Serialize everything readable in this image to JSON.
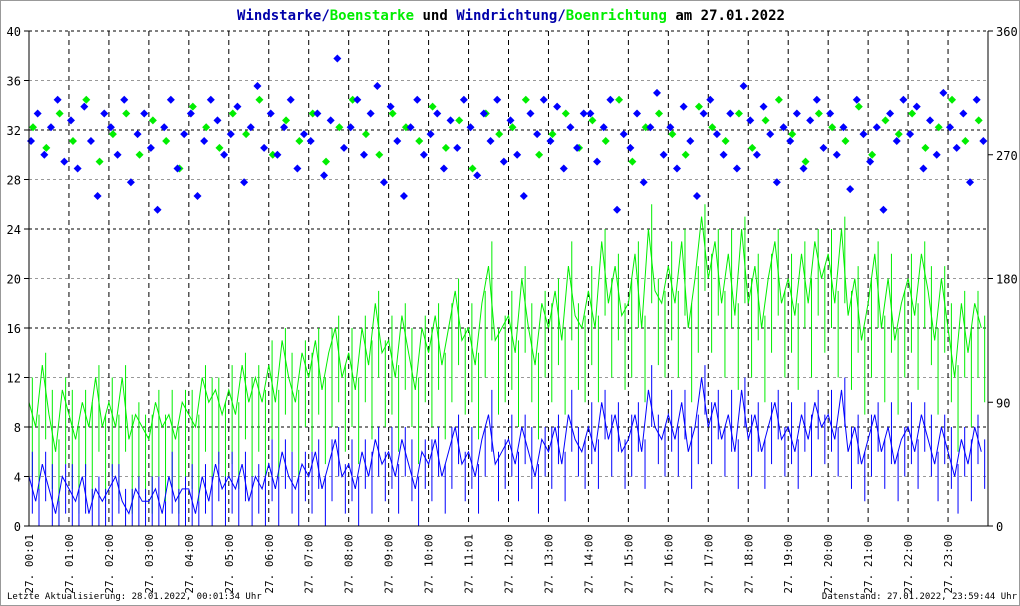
{
  "title": {
    "part1": "Windstarke/",
    "part2": "Boenstarke",
    "part3": " und ",
    "part4": "Windrichtung/",
    "part5": "Boenrichtung",
    "part6": " am 27.01.2022"
  },
  "footer": {
    "left": "Letzte Aktualisierung: 28.01.2022, 00:01:34 Uhr",
    "right": "Datenstand: 27.01.2022, 23:59:44 Uhr"
  },
  "colors": {
    "speed": "#0000ff",
    "gust": "#00ee00",
    "title_blue": "#0000aa",
    "grid": "#000000"
  },
  "chart_data": {
    "type": "line",
    "title": "Windstarke/Boenstarke und Windrichtung/Boenrichtung am 27.01.2022",
    "x_unit": "hours",
    "xlim": [
      0,
      24
    ],
    "x_tick_labels": [
      "27. 00:01",
      "27. 01:00",
      "27. 02:00",
      "27. 03:00",
      "27. 04:00",
      "27. 05:00",
      "27. 06:00",
      "27. 07:00",
      "27. 08:00",
      "27. 09:00",
      "27. 10:00",
      "27. 11:01",
      "27. 12:00",
      "27. 13:00",
      "27. 14:00",
      "27. 15:00",
      "27. 16:00",
      "27. 17:00",
      "27. 18:00",
      "27. 19:00",
      "27. 20:00",
      "27. 21:00",
      "27. 22:00",
      "27. 23:00"
    ],
    "ylim_left": [
      0,
      40
    ],
    "y_ticks_left": [
      "0",
      "4",
      "8",
      "12",
      "16",
      "20",
      "24",
      "28",
      "32",
      "36",
      "40"
    ],
    "ylim_right": [
      0,
      360
    ],
    "y_ticks_right": [
      "0",
      "90",
      "180",
      "270",
      "360"
    ],
    "grid": true,
    "series": [
      {
        "name": "Windstarke",
        "axis": "left",
        "style": "line",
        "step_minutes": 10,
        "values": [
          4,
          2,
          5,
          3,
          1,
          4,
          3,
          2,
          4,
          1,
          3,
          2,
          3,
          4,
          2,
          1,
          3,
          2,
          2,
          3,
          1,
          4,
          2,
          3,
          3,
          1,
          4,
          2,
          5,
          3,
          4,
          3,
          5,
          2,
          4,
          3,
          5,
          3,
          6,
          4,
          3,
          5,
          4,
          6,
          3,
          5,
          7,
          4,
          5,
          3,
          6,
          4,
          7,
          5,
          6,
          4,
          7,
          5,
          3,
          6,
          5,
          7,
          4,
          6,
          8,
          5,
          6,
          4,
          7,
          9,
          5,
          6,
          7,
          5,
          8,
          6,
          4,
          7,
          6,
          8,
          5,
          9,
          7,
          6,
          8,
          6,
          10,
          7,
          9,
          6,
          7,
          9,
          6,
          11,
          8,
          7,
          9,
          7,
          10,
          6,
          8,
          12,
          8,
          10,
          7,
          9,
          6,
          11,
          7,
          9,
          6,
          8,
          10,
          7,
          8,
          6,
          9,
          7,
          10,
          8,
          9,
          7,
          11,
          6,
          8,
          5,
          7,
          9,
          6,
          8,
          5,
          7,
          8,
          6,
          9,
          7,
          5,
          8,
          6,
          4,
          7,
          5,
          8,
          6
        ]
      },
      {
        "name": "Boenstarke",
        "axis": "left",
        "style": "line",
        "step_minutes": 10,
        "values": [
          10,
          8,
          13,
          9,
          6,
          11,
          9,
          7,
          10,
          8,
          12,
          8,
          10,
          8,
          12,
          7,
          9,
          8,
          7,
          10,
          8,
          9,
          7,
          10,
          9,
          8,
          12,
          10,
          11,
          9,
          11,
          9,
          13,
          10,
          12,
          10,
          13,
          10,
          15,
          12,
          10,
          14,
          12,
          15,
          11,
          14,
          16,
          12,
          14,
          11,
          16,
          13,
          18,
          14,
          15,
          12,
          17,
          14,
          11,
          16,
          14,
          17,
          13,
          16,
          19,
          15,
          16,
          13,
          18,
          21,
          15,
          16,
          17,
          14,
          20,
          16,
          13,
          18,
          16,
          19,
          15,
          21,
          17,
          16,
          19,
          16,
          23,
          18,
          21,
          17,
          18,
          22,
          16,
          24,
          19,
          18,
          21,
          18,
          23,
          16,
          20,
          25,
          20,
          23,
          18,
          22,
          17,
          24,
          18,
          21,
          16,
          20,
          23,
          18,
          20,
          17,
          22,
          18,
          23,
          20,
          22,
          18,
          24,
          17,
          20,
          15,
          18,
          22,
          16,
          20,
          15,
          18,
          20,
          17,
          22,
          19,
          15,
          20,
          16,
          12,
          18,
          14,
          18,
          16
        ]
      },
      {
        "name": "Windrichtung",
        "axis": "right",
        "style": "diamond",
        "step_minutes": 10,
        "values": [
          280,
          300,
          270,
          290,
          310,
          265,
          295,
          260,
          305,
          280,
          240,
          300,
          290,
          270,
          310,
          250,
          285,
          300,
          275,
          230,
          290,
          310,
          260,
          285,
          300,
          240,
          280,
          310,
          295,
          270,
          285,
          305,
          250,
          290,
          320,
          275,
          300,
          270,
          290,
          310,
          260,
          285,
          280,
          300,
          255,
          295,
          340,
          275,
          290,
          310,
          270,
          300,
          320,
          250,
          305,
          280,
          240,
          290,
          310,
          270,
          285,
          300,
          260,
          295,
          275,
          310,
          290,
          255,
          300,
          280,
          310,
          265,
          295,
          270,
          240,
          300,
          285,
          310,
          280,
          305,
          260,
          290,
          275,
          300,
          300,
          265,
          290,
          310,
          230,
          285,
          275,
          300,
          250,
          290,
          315,
          270,
          290,
          260,
          305,
          280,
          240,
          300,
          310,
          285,
          270,
          300,
          260,
          320,
          295,
          270,
          305,
          285,
          250,
          290,
          280,
          300,
          260,
          295,
          310,
          275,
          300,
          270,
          290,
          245,
          310,
          285,
          265,
          290,
          230,
          300,
          280,
          310,
          285,
          305,
          260,
          295,
          270,
          315,
          290,
          275,
          300,
          250,
          310,
          280
        ]
      },
      {
        "name": "Boenrichtung",
        "axis": "right",
        "style": "diamond",
        "step_minutes": 20,
        "values": [
          290,
          275,
          300,
          280,
          310,
          265,
          285,
          300,
          270,
          295,
          280,
          260,
          305,
          290,
          275,
          300,
          285,
          310,
          270,
          295,
          280,
          300,
          265,
          290,
          310,
          285,
          270,
          300,
          290,
          280,
          305,
          275,
          295,
          260,
          300,
          285,
          290,
          310,
          270,
          285,
          300,
          275,
          295,
          280,
          310,
          265,
          290,
          300,
          285,
          270,
          305,
          290,
          280,
          300,
          275,
          295,
          310,
          285,
          265,
          300,
          290,
          280,
          305,
          270,
          295,
          285,
          300,
          275,
          290,
          310,
          280,
          295
        ]
      }
    ]
  }
}
